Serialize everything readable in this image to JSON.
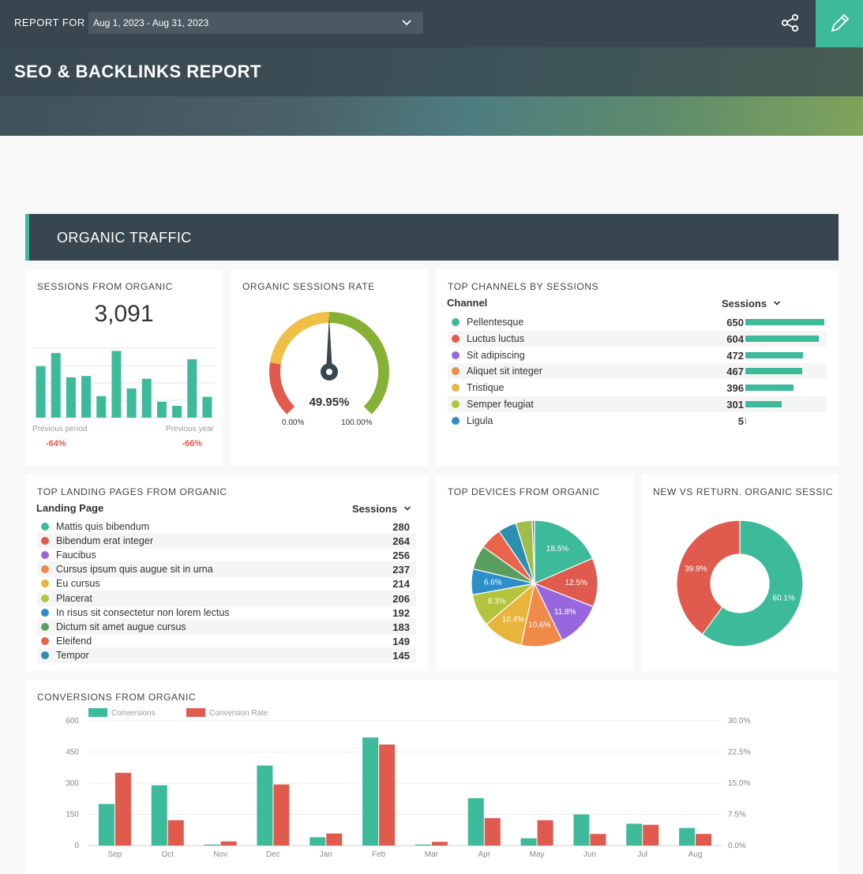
{
  "header": {
    "report_for_label": "REPORT FOR",
    "date_range": "Aug 1, 2023 - Aug 31, 2023",
    "title": "SEO & BACKLINKS REPORT"
  },
  "section": {
    "title": "ORGANIC TRAFFIC"
  },
  "sessions_card": {
    "title": "SESSIONS FROM ORGANIC",
    "value": "3,091",
    "prev_period_label": "Previous period",
    "prev_period_delta": "-64%",
    "prev_year_label": "Previous year",
    "prev_year_delta": "-66%",
    "bars": [
      0.74,
      0.93,
      0.58,
      0.6,
      0.31,
      0.96,
      0.42,
      0.56,
      0.23,
      0.17,
      0.84,
      0.3
    ],
    "bar_color": "#3cba9a"
  },
  "rate_card": {
    "title": "ORGANIC SESSIONS RATE",
    "value": "49.95%",
    "min_label": "0.00%",
    "max_label": "100.00%",
    "fraction": 0.4995,
    "colors": {
      "low": "#e05a4e",
      "mid": "#f0bf45",
      "high": "#86b135"
    }
  },
  "channels_card": {
    "title": "TOP CHANNELS BY SESSIONS",
    "col_channel": "Channel",
    "col_sessions": "Sessions",
    "rows": [
      {
        "name": "Pellentesque",
        "value": "650",
        "n": 650,
        "color": "#3cba9a"
      },
      {
        "name": "Luctus luctus",
        "value": "604",
        "n": 604,
        "color": "#e05a4e"
      },
      {
        "name": "Sit adipiscing",
        "value": "472",
        "n": 472,
        "color": "#9867de"
      },
      {
        "name": "Aliquet sit integer",
        "value": "467",
        "n": 467,
        "color": "#ef8a48"
      },
      {
        "name": "Tristique",
        "value": "396",
        "n": 396,
        "color": "#e8b43c"
      },
      {
        "name": "Semper feugiat",
        "value": "301",
        "n": 301,
        "color": "#b3c43c"
      },
      {
        "name": "Ligula",
        "value": "5",
        "n": 5,
        "color": "#2e8ec9"
      }
    ]
  },
  "landing_card": {
    "title": "TOP LANDING PAGES FROM ORGANIC",
    "col_page": "Landing Page",
    "col_sessions": "Sessions",
    "rows": [
      {
        "name": "Mattis quis bibendum",
        "value": "280",
        "color": "#3cba9a"
      },
      {
        "name": "Bibendum erat integer",
        "value": "264",
        "color": "#e05a4e"
      },
      {
        "name": "Faucibus",
        "value": "256",
        "color": "#9867de"
      },
      {
        "name": "Cursus ipsum quis augue sit in urna",
        "value": "237",
        "color": "#ef8a48"
      },
      {
        "name": "Eu cursus",
        "value": "214",
        "color": "#e8b43c"
      },
      {
        "name": "Placerat",
        "value": "206",
        "color": "#b3c43c"
      },
      {
        "name": "In risus sit consectetur non lorem lectus",
        "value": "192",
        "color": "#2e8ec9"
      },
      {
        "name": "Dictum sit amet augue cursus",
        "value": "183",
        "color": "#5a9e5e"
      },
      {
        "name": "Eleifend",
        "value": "149",
        "color": "#e8654c"
      },
      {
        "name": "Tempor",
        "value": "145",
        "color": "#2d8fb0"
      }
    ]
  },
  "devices_card": {
    "title": "TOP DEVICES FROM ORGANIC",
    "slices": [
      {
        "value": 18.5,
        "label": "18.5%",
        "color": "#3cba9a"
      },
      {
        "value": 12.5,
        "label": "12.5%",
        "color": "#e05a4e"
      },
      {
        "value": 11.8,
        "label": "11.8%",
        "color": "#9867de"
      },
      {
        "value": 10.6,
        "label": "10.6%",
        "color": "#ef8a48"
      },
      {
        "value": 10.4,
        "label": "10.4%",
        "color": "#e8b43c"
      },
      {
        "value": 8.3,
        "label": "8.3%",
        "color": "#b3c43c"
      },
      {
        "value": 6.6,
        "label": "6.6%",
        "color": "#2e8ec9"
      },
      {
        "value": 6.2,
        "label": "",
        "color": "#5a9e5e"
      },
      {
        "value": 5.6,
        "label": "",
        "color": "#e8654c"
      },
      {
        "value": 4.7,
        "label": "",
        "color": "#2d8fb0"
      },
      {
        "value": 4.2,
        "label": "",
        "color": "#9fbd4a"
      },
      {
        "value": 0.6,
        "label": "",
        "color": "#6a7fb8"
      }
    ]
  },
  "newret_card": {
    "title": "NEW VS RETURN. ORGANIC SESSIC",
    "slices": [
      {
        "value": 60.1,
        "label": "60.1%",
        "color": "#3cba9a"
      },
      {
        "value": 39.9,
        "label": "39.9%",
        "color": "#e05a4e"
      }
    ]
  },
  "conversions_card": {
    "title": "CONVERSIONS FROM ORGANIC",
    "chart_data": {
      "type": "bar",
      "categories": [
        "Sep",
        "Oct",
        "Nov",
        "Dec",
        "Jan",
        "Feb",
        "Mar",
        "Apr",
        "May",
        "Jun",
        "Jul",
        "Aug"
      ],
      "series": [
        {
          "name": "Conversions",
          "axis": "left",
          "color": "#3cba9a",
          "values": [
            200,
            290,
            5,
            385,
            40,
            520,
            5,
            228,
            35,
            150,
            105,
            85
          ]
        },
        {
          "name": "Conversion Rate",
          "axis": "right",
          "color": "#e05a4e",
          "values": [
            17.5,
            6.1,
            1.0,
            14.7,
            2.9,
            24.3,
            0.9,
            6.6,
            6.1,
            2.8,
            5.0,
            2.8
          ]
        }
      ],
      "left_axis": {
        "min": 0,
        "max": 600,
        "ticks": [
          "0",
          "150",
          "300",
          "450",
          "600"
        ]
      },
      "right_axis": {
        "min": 0,
        "max": 30,
        "ticks": [
          "0.0%",
          "7.5%",
          "15.0%",
          "22.5%",
          "30.0%"
        ]
      },
      "grid": true,
      "legend": "top-left"
    }
  }
}
